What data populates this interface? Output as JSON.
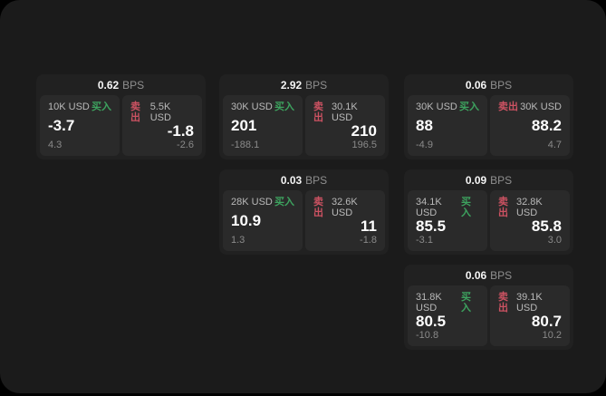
{
  "labels": {
    "buy": "买入",
    "sell": "卖出",
    "bps_unit": "BPS"
  },
  "colors": {
    "background": "#1b1b1b",
    "card": "#212121",
    "panel": "#2a2a2a",
    "buy_accent": "#3da35f",
    "sell_accent": "#cc5262",
    "price_text": "#ffffff",
    "muted_text": "#8a8a8a"
  },
  "cards": [
    {
      "bps": "0.62",
      "buy": {
        "size": "10K USD",
        "price": "-3.7",
        "change": "4.3"
      },
      "sell": {
        "size": "5.5K USD",
        "price": "-1.8",
        "change": "-2.6"
      }
    },
    {
      "bps": "2.92",
      "buy": {
        "size": "30K USD",
        "price": "201",
        "change": "-188.1"
      },
      "sell": {
        "size": "30.1K USD",
        "price": "210",
        "change": "196.5"
      }
    },
    {
      "bps": "0.06",
      "buy": {
        "size": "30K USD",
        "price": "88",
        "change": "-4.9"
      },
      "sell": {
        "size": "30K USD",
        "price": "88.2",
        "change": "4.7"
      }
    },
    {
      "bps": "0.03",
      "buy": {
        "size": "28K USD",
        "price": "10.9",
        "change": "1.3"
      },
      "sell": {
        "size": "32.6K USD",
        "price": "11",
        "change": "-1.8"
      }
    },
    {
      "bps": "0.09",
      "buy": {
        "size": "34.1K USD",
        "price": "85.5",
        "change": "-3.1"
      },
      "sell": {
        "size": "32.8K USD",
        "price": "85.8",
        "change": "3.0"
      }
    },
    {
      "bps": "0.06",
      "buy": {
        "size": "31.8K USD",
        "price": "80.5",
        "change": "-10.8"
      },
      "sell": {
        "size": "39.1K USD",
        "price": "80.7",
        "change": "10.2"
      }
    }
  ]
}
